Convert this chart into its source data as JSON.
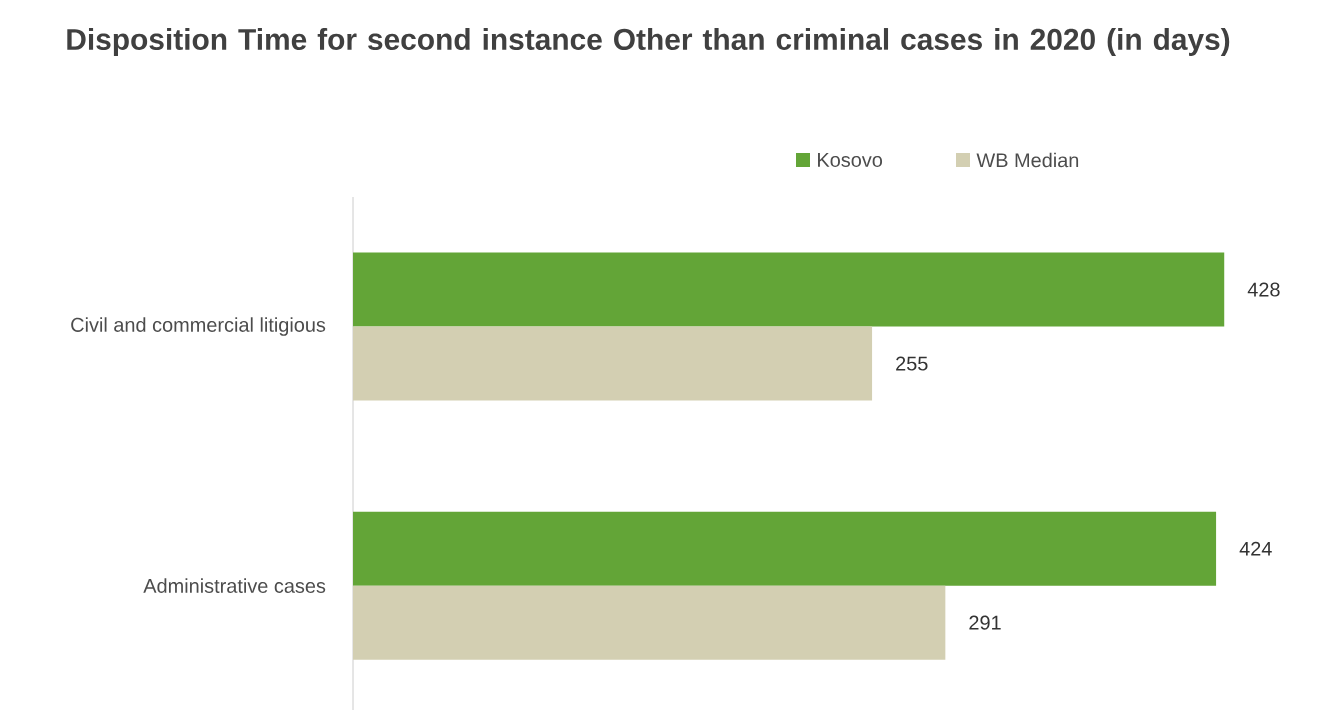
{
  "chart_data": {
    "type": "bar",
    "orientation": "horizontal",
    "title": "Disposition Time for second instance Other than criminal cases in 2020 (in days)",
    "categories": [
      "Civil and commercial litigious",
      "Administrative cases"
    ],
    "series": [
      {
        "name": "Kosovo",
        "color": "#63a537",
        "values": [
          428,
          424
        ]
      },
      {
        "name": "WB Median",
        "color": "#d3cfb2",
        "values": [
          255,
          291
        ]
      }
    ],
    "data_labels": true,
    "legend": "top",
    "tick_labels": "y"
  }
}
